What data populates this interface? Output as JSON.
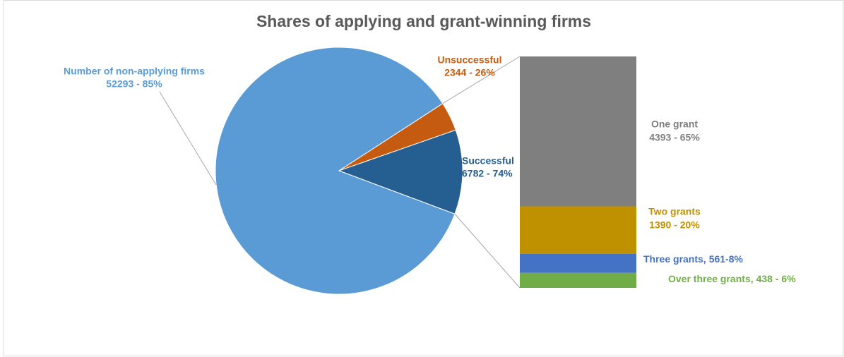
{
  "chart_data": {
    "type": "pie-of-bar",
    "title": "Shares of applying and grant-winning firms",
    "pie": {
      "categories": [
        "Number of non-applying firms",
        "Unsuccessful",
        "Successful"
      ],
      "values": [
        52293,
        2344,
        6782
      ],
      "value_labels": [
        "52293 - 85%",
        "2344 - 26%",
        "6782 - 74%"
      ],
      "colors": [
        "#5b9bd5",
        "#c55a11",
        "#255e91"
      ]
    },
    "bar": {
      "categories": [
        "One grant",
        "Two grants",
        "Three grants,",
        "Over three grants,"
      ],
      "values": [
        4393,
        1390,
        561,
        438
      ],
      "value_labels": [
        "4393 - 65%",
        "1390 - 20%",
        "561-8%",
        "438 - 6%"
      ],
      "colors": [
        "#7f7f7f",
        "#bf9000",
        "#4472c4",
        "#70ad47"
      ]
    }
  }
}
